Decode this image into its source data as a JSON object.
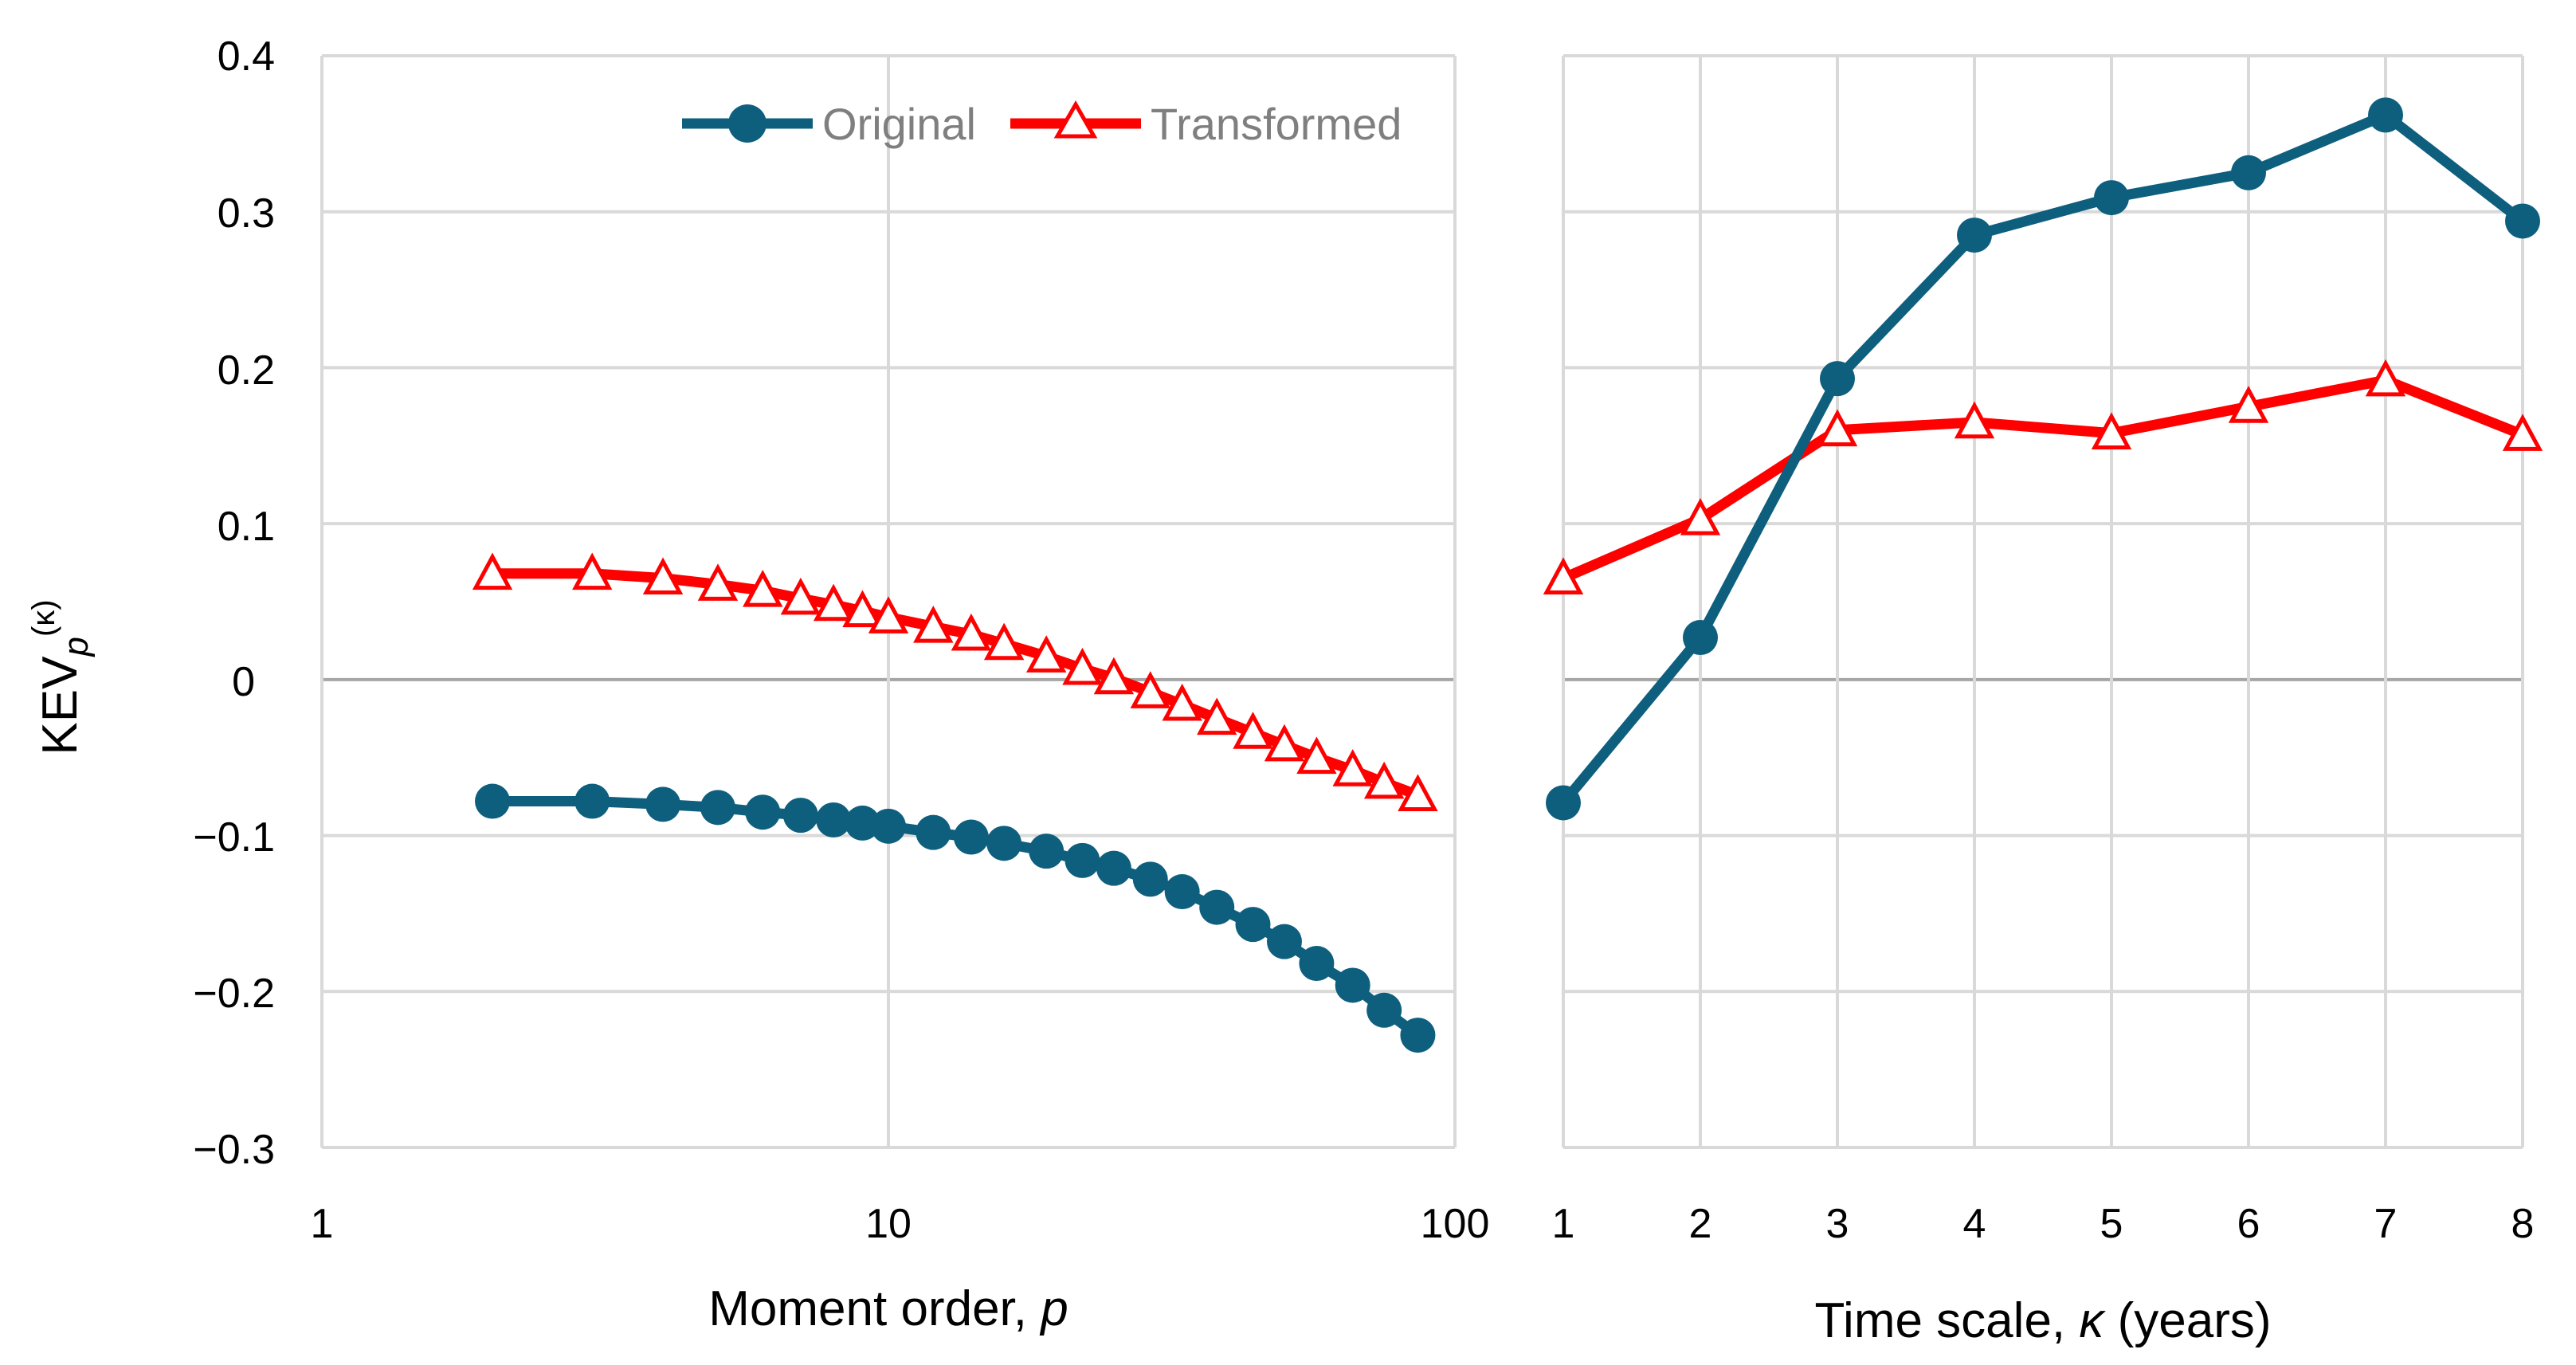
{
  "colors": {
    "original": "#0e5f7e",
    "transformed": "#ff0000",
    "grid": "#d9d9d9",
    "zero_line": "#a6a6a6",
    "legend_text": "#7f7f7f"
  },
  "legend": {
    "placement": "top-right of left panel",
    "original_label": "Original",
    "transformed_label": "Transformed"
  },
  "y_axis": {
    "label_main": "KEV",
    "label_sub": "p",
    "label_sup": "(κ)",
    "ticks": [
      "0.4",
      "0.3",
      "0.2",
      "0.1",
      "0",
      "−0.1",
      "−0.2",
      "−0.3"
    ]
  },
  "left_x_axis": {
    "label_text": "Moment order, ",
    "label_var": "p",
    "ticks": [
      "1",
      "10",
      "100"
    ]
  },
  "right_x_axis": {
    "label_text": "Time scale, ",
    "label_var": "κ",
    "label_unit": " (years)",
    "ticks": [
      "1",
      "2",
      "3",
      "4",
      "5",
      "6",
      "7",
      "8"
    ]
  },
  "chart_data": [
    {
      "type": "line",
      "xscale": "log",
      "xlim": [
        1,
        100
      ],
      "ylim": [
        -0.3,
        0.4
      ],
      "grid": true,
      "series": [
        {
          "name": "Original",
          "marker": "circle",
          "x": [
            2,
            3,
            4,
            5,
            6,
            7,
            8,
            9,
            10,
            12,
            14,
            16,
            19,
            22,
            25,
            29,
            33,
            38,
            44,
            50,
            57,
            66,
            75,
            86
          ],
          "y": [
            -0.078,
            -0.078,
            -0.08,
            -0.082,
            -0.085,
            -0.087,
            -0.09,
            -0.092,
            -0.094,
            -0.098,
            -0.101,
            -0.105,
            -0.11,
            -0.116,
            -0.121,
            -0.128,
            -0.136,
            -0.146,
            -0.157,
            -0.168,
            -0.182,
            -0.196,
            -0.212,
            -0.228
          ]
        },
        {
          "name": "Transformed",
          "marker": "triangle",
          "x": [
            2,
            3,
            4,
            5,
            6,
            7,
            8,
            9,
            10,
            12,
            14,
            16,
            19,
            22,
            25,
            29,
            33,
            38,
            44,
            50,
            57,
            66,
            75,
            86
          ],
          "y": [
            0.068,
            0.068,
            0.065,
            0.061,
            0.057,
            0.052,
            0.048,
            0.044,
            0.04,
            0.034,
            0.029,
            0.023,
            0.015,
            0.007,
            0.001,
            -0.008,
            -0.016,
            -0.025,
            -0.034,
            -0.042,
            -0.05,
            -0.058,
            -0.066,
            -0.074
          ]
        }
      ]
    },
    {
      "type": "line",
      "xlim": [
        1,
        8
      ],
      "ylim": [
        -0.3,
        0.4
      ],
      "grid": true,
      "series": [
        {
          "name": "Original",
          "marker": "circle",
          "x": [
            1,
            2,
            3,
            4,
            5,
            6,
            7,
            8
          ],
          "y": [
            -0.079,
            0.027,
            0.193,
            0.285,
            0.309,
            0.325,
            0.362,
            0.294
          ]
        },
        {
          "name": "Transformed",
          "marker": "triangle",
          "x": [
            1,
            2,
            3,
            4,
            5,
            6,
            7,
            8
          ],
          "y": [
            0.065,
            0.103,
            0.16,
            0.165,
            0.158,
            0.175,
            0.192,
            0.157
          ]
        }
      ]
    }
  ]
}
